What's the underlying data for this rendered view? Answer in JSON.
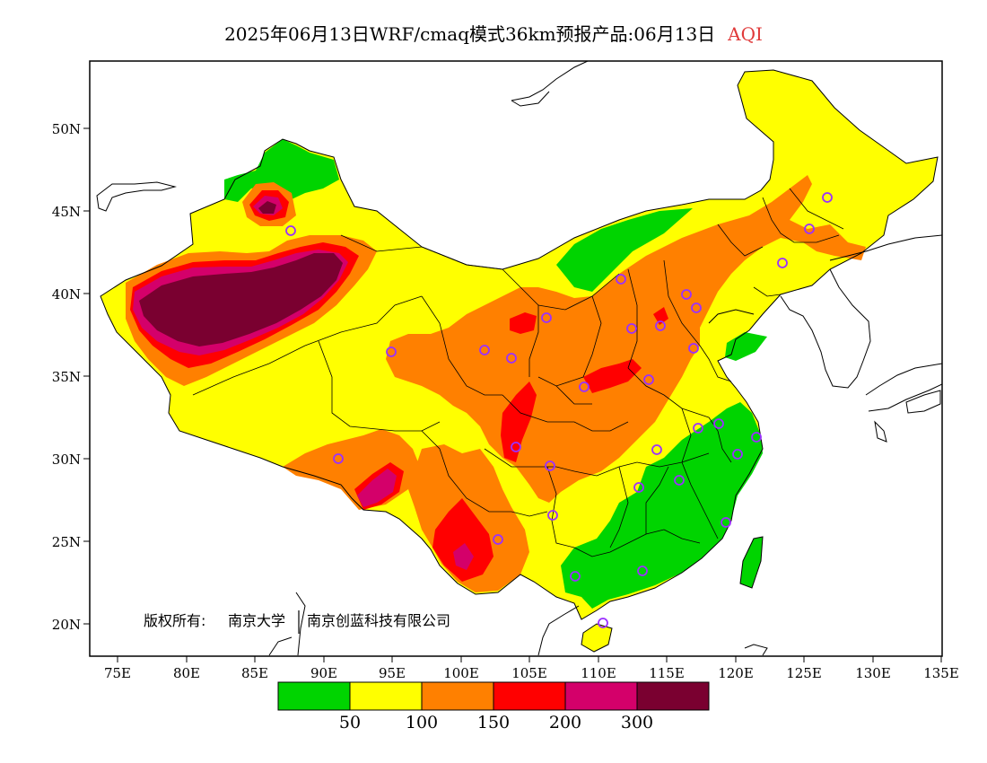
{
  "title": {
    "text": "2025年06月13日WRF/cmaq模式36km预报产品:06月13日",
    "variable": "AQI",
    "variable_color": "#e03a3a"
  },
  "axes": {
    "x_ticks": [
      "75E",
      "80E",
      "85E",
      "90E",
      "95E",
      "100E",
      "105E",
      "110E",
      "115E",
      "120E",
      "125E",
      "130E",
      "135E"
    ],
    "y_ticks": [
      "20N",
      "25N",
      "30N",
      "35N",
      "40N",
      "45N",
      "50N"
    ]
  },
  "copyright": {
    "owner_label": "版权所有:",
    "org1": "南京大学",
    "org2": "南京创蓝科技有限公司"
  },
  "legend": {
    "colors": [
      "#00d400",
      "#ffff00",
      "#ff8000",
      "#ff0000",
      "#d4006a",
      "#7a0030"
    ],
    "labels": [
      "50",
      "100",
      "150",
      "200",
      "300"
    ]
  },
  "colors": {
    "good": "#00d400",
    "moderate": "#ffff00",
    "usg": "#ff8000",
    "unhealthy": "#ff0000",
    "very_unhealthy": "#d4006a",
    "hazardous": "#7a0030",
    "station_marker": "#9b30ff"
  }
}
